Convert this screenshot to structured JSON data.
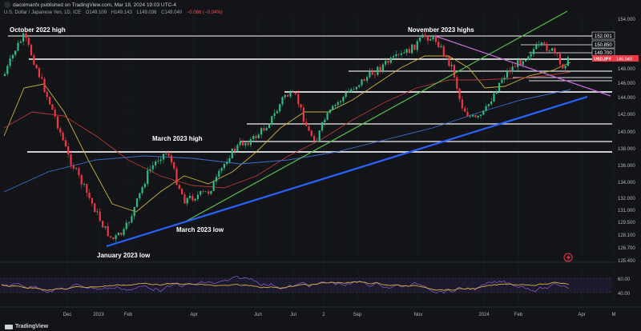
{
  "header": {
    "title": "dacolmanfx published on TradingView.com, Mar 18, 2024 19:03 UTC-4",
    "symbol_desc": "U.S. Dollar / Japanese Yen, 1D, ICE",
    "open": "O149.109",
    "high": "H149.143",
    "low": "L149.036",
    "close": "C149.040",
    "change": "−0.066 (−0.04%)"
  },
  "annotations": {
    "oct2022": "October 2022 high",
    "nov2023": "November 2023 highs",
    "mar2023high": "March 2023 high",
    "mar2023low": "March 2023 low",
    "jan2023low": "January 2023 low"
  },
  "price_axis": {
    "labels": [
      "154.000",
      "152.000",
      "150.850",
      "149.700",
      "149.040",
      "148.000",
      "146.000",
      "144.000",
      "142.000",
      "140.000",
      "138.000",
      "136.000",
      "134.000",
      "132.000",
      "131.000",
      "129.500",
      "128.100",
      "126.700",
      "125.400"
    ],
    "current_price": "149.040",
    "symbol_badge": "USDJPY",
    "boxed_levels": [
      "152.001",
      "150.850",
      "149.700"
    ]
  },
  "rsi_axis": {
    "labels": [
      "60.00",
      "40.00"
    ]
  },
  "time_axis": {
    "labels": [
      "Dec",
      "2023",
      "Feb",
      "Apr",
      "Jun",
      "Jul",
      "2",
      "Sep",
      "Nov",
      "2024",
      "Feb",
      "Apr",
      "M"
    ]
  },
  "footer": {
    "brand": "TradingView"
  },
  "colors": {
    "background": "#121417",
    "up_candle": "#2ebd85",
    "down_candle": "#f23645",
    "green_trendline": "#55c24a",
    "blue_trendline": "#2962ff",
    "purple_trendline": "#c86bd8",
    "ma_yellow": "#c9b03a",
    "ma_red": "#b53838",
    "ma_blue": "#3f6fd0",
    "rsi_line": "#7e57c2",
    "rsi_signal": "#d4b03c",
    "price_badge": "#f23645"
  }
}
